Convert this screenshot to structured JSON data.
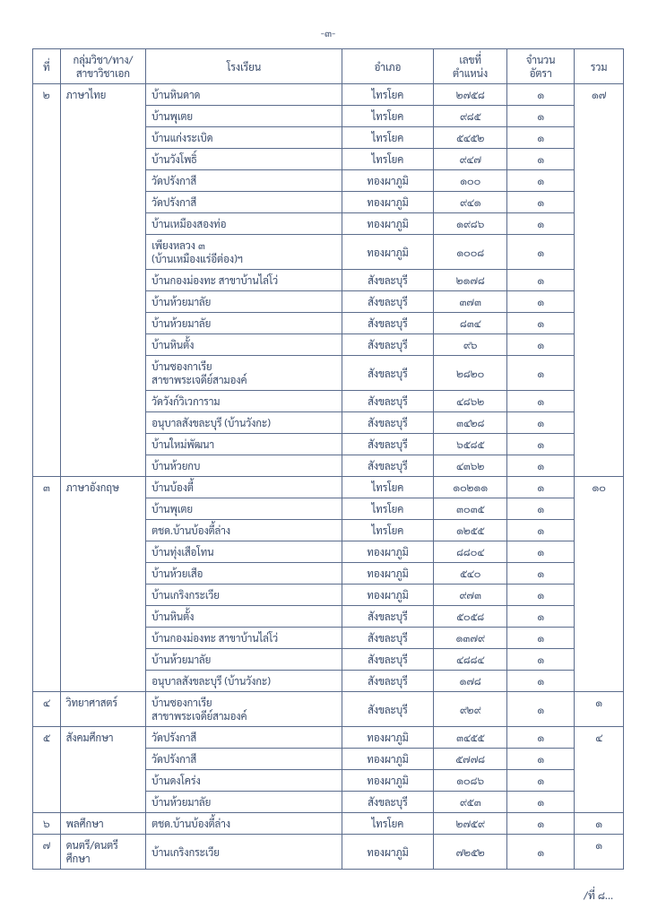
{
  "page_label": "-๓-",
  "footer": "/ที่ ๘...",
  "headers": {
    "idx": "ที่",
    "subject": "กลุ่มวิชา/ทาง/\nสาขาวิชาเอก",
    "school": "โรงเรียน",
    "district": "อำเภอ",
    "posno": "เลขที่\nตำแหน่ง",
    "qty": "จำนวน\nอัตรา",
    "total": "รวม"
  },
  "groups": [
    {
      "idx": "๒",
      "subject": "ภาษาไทย",
      "total": "๑๗",
      "rows": [
        {
          "school": "บ้านหินดาด",
          "dist": "ไทรโยค",
          "pos": "๒๗๕๘",
          "qty": "๑"
        },
        {
          "school": "บ้านพุเตย",
          "dist": "ไทรโยค",
          "pos": "๙๘๕",
          "qty": "๑"
        },
        {
          "school": "บ้านแก่งระเบิด",
          "dist": "ไทรโยค",
          "pos": "๕๔๕๒",
          "qty": "๑"
        },
        {
          "school": "บ้านวังโพธิ์",
          "dist": "ไทรโยค",
          "pos": "๙๔๗",
          "qty": "๑"
        },
        {
          "school": "วัดปรังกาสี",
          "dist": "ทองผาภูมิ",
          "pos": "๑๐๐",
          "qty": "๑"
        },
        {
          "school": "วัดปรังกาสี",
          "dist": "ทองผาภูมิ",
          "pos": "๙๔๑",
          "qty": "๑"
        },
        {
          "school": "บ้านเหมืองสองท่อ",
          "dist": "ทองผาภูมิ",
          "pos": "๑๙๘๖",
          "qty": "๑"
        },
        {
          "school": "เพียงหลวง ๓\n(บ้านเหมืองแร่อีต่อง)ฯ",
          "dist": "ทองผาภูมิ",
          "pos": "๑๐๐๘",
          "qty": "๑"
        },
        {
          "school": "บ้านกองม่องทะ สาขาบ้านไล่โว่",
          "dist": "สังขละบุรี",
          "pos": "๒๑๗๘",
          "qty": "๑"
        },
        {
          "school": "บ้านห้วยมาลัย",
          "dist": "สังขละบุรี",
          "pos": "๓๗๓",
          "qty": "๑"
        },
        {
          "school": "บ้านห้วยมาลัย",
          "dist": "สังขละบุรี",
          "pos": "๘๓๔",
          "qty": "๑"
        },
        {
          "school": "บ้านหินตั้ง",
          "dist": "สังขละบุรี",
          "pos": "๙๖",
          "qty": "๑"
        },
        {
          "school": "บ้านซองกาเรีย\nสาขาพระเจดีย์สามองค์",
          "dist": "สังขละบุรี",
          "pos": "๒๘๒๐",
          "qty": "๑"
        },
        {
          "school": "วัดวังก์วิเวการาม",
          "dist": "สังขละบุรี",
          "pos": "๔๘๖๒",
          "qty": "๑"
        },
        {
          "school": "อนุบาลสังขละบุรี (บ้านวังกะ)",
          "dist": "สังขละบุรี",
          "pos": "๓๔๒๘",
          "qty": "๑"
        },
        {
          "school": "บ้านใหม่พัฒนา",
          "dist": "สังขละบุรี",
          "pos": "๖๕๘๕",
          "qty": "๑"
        },
        {
          "school": "บ้านห้วยกบ",
          "dist": "สังขละบุรี",
          "pos": "๔๓๖๒",
          "qty": "๑"
        }
      ]
    },
    {
      "idx": "๓",
      "subject": "ภาษาอังกฤษ",
      "total": "๑๐",
      "rows": [
        {
          "school": "บ้านบ้องตี้",
          "dist": "ไทรโยค",
          "pos": "๑๐๒๑๑",
          "qty": "๑"
        },
        {
          "school": "บ้านพุเตย",
          "dist": "ไทรโยค",
          "pos": "๓๐๓๕",
          "qty": "๑"
        },
        {
          "school": "ตชด.บ้านบ้องตี้ล่าง",
          "dist": "ไทรโยค",
          "pos": "๑๒๕๕",
          "qty": "๑"
        },
        {
          "school": "บ้านทุ่งเสือโทน",
          "dist": "ทองผาภูมิ",
          "pos": "๘๘๐๔",
          "qty": "๑"
        },
        {
          "school": "บ้านห้วยเสือ",
          "dist": "ทองผาภูมิ",
          "pos": "๕๔๐",
          "qty": "๑"
        },
        {
          "school": "บ้านเกริงกระเวีย",
          "dist": "ทองผาภูมิ",
          "pos": "๙๗๓",
          "qty": "๑"
        },
        {
          "school": "บ้านหินตั้ง",
          "dist": "สังขละบุรี",
          "pos": "๕๐๕๘",
          "qty": "๑"
        },
        {
          "school": "บ้านกองม่องทะ สาขาบ้านไล่โว่",
          "dist": "สังขละบุรี",
          "pos": "๑๓๗๙",
          "qty": "๑"
        },
        {
          "school": "บ้านห้วยมาลัย",
          "dist": "สังขละบุรี",
          "pos": "๔๘๘๔",
          "qty": "๑"
        },
        {
          "school": "อนุบาลสังขละบุรี (บ้านวังกะ)",
          "dist": "สังขละบุรี",
          "pos": "๑๗๘",
          "qty": "๑"
        }
      ]
    },
    {
      "idx": "๔",
      "subject": "วิทยาศาสตร์",
      "total": "๑",
      "rows": [
        {
          "school": "บ้านซองกาเรีย\nสาขาพระเจดีย์สามองค์",
          "dist": "สังขละบุรี",
          "pos": "๙๒๙",
          "qty": "๑"
        }
      ]
    },
    {
      "idx": "๕",
      "subject": "สังคมศึกษา",
      "total": "๔",
      "rows": [
        {
          "school": "วัดปรังกาสี",
          "dist": "ทองผาภูมิ",
          "pos": "๓๔๕๕",
          "qty": "๑"
        },
        {
          "school": "วัดปรังกาสี",
          "dist": "ทองผาภูมิ",
          "pos": "๕๗๗๘",
          "qty": "๑"
        },
        {
          "school": "บ้านดงโคร่ง",
          "dist": "ทองผาภูมิ",
          "pos": "๑๐๘๖",
          "qty": "๑"
        },
        {
          "school": "บ้านห้วยมาลัย",
          "dist": "สังขละบุรี",
          "pos": "๙๕๓",
          "qty": "๑"
        }
      ]
    },
    {
      "idx": "๖",
      "subject": "พลศึกษา",
      "total": "๑",
      "rows": [
        {
          "school": "ตชด.บ้านบ้องตี้ล่าง",
          "dist": "ไทรโยค",
          "pos": "๒๗๕๙",
          "qty": "๑"
        }
      ]
    },
    {
      "idx": "๗",
      "subject": "ดนตรี/ดนตรีศึกษา",
      "total": "๑",
      "rows": [
        {
          "school": "บ้านเกริงกระเวีย",
          "dist": "ทองผาภูมิ",
          "pos": "๗๒๕๒",
          "qty": "๑"
        }
      ]
    }
  ],
  "style": {
    "border_color": "#5b6c8c",
    "text_color": "#394b6a",
    "background": "#ffffff",
    "font_size_pt": 11.5,
    "header_align": "center"
  }
}
